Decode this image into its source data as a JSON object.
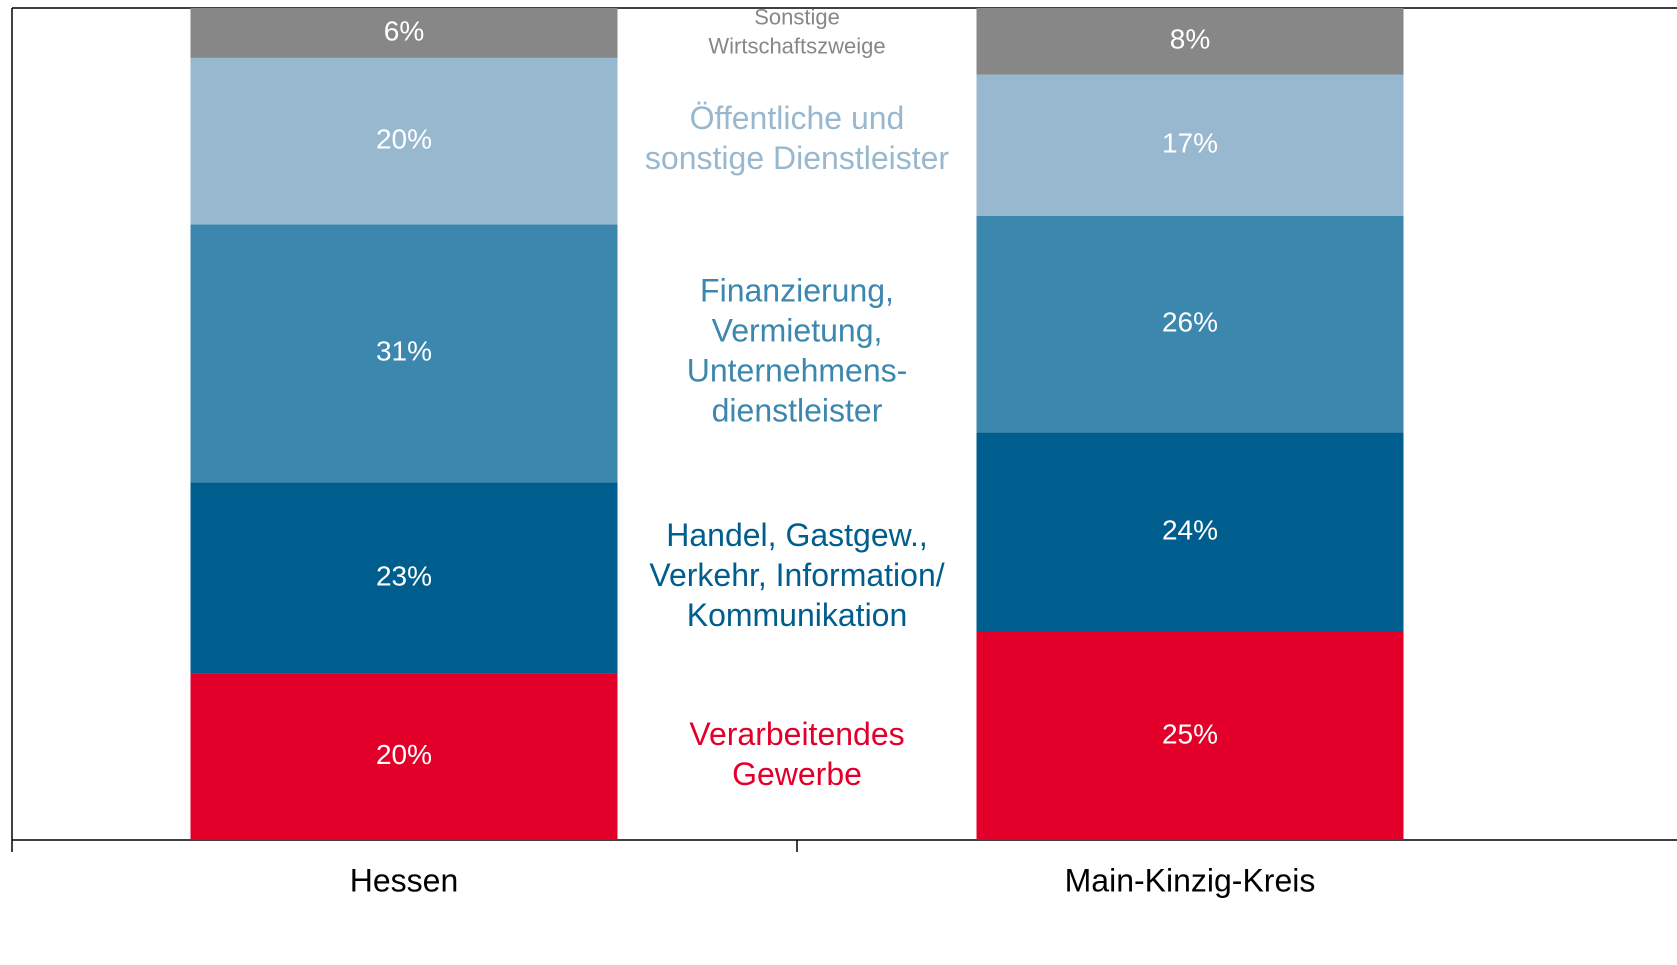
{
  "chart_data": {
    "type": "stacked_bar",
    "categories": [
      "Hessen",
      "Main-Kinzig-Kreis"
    ],
    "ylim": [
      0,
      100
    ],
    "series": [
      {
        "name": "Verarbeitendes\nGewerbe",
        "color": "#e2002a",
        "values": [
          20,
          25
        ],
        "value_labels": [
          "20%",
          "25%"
        ]
      },
      {
        "name": "Handel, Gastgew.,\nVerkehr, Information/\nKommunikation",
        "color": "#005e8e",
        "values": [
          23,
          24
        ],
        "value_labels": [
          "23%",
          "24%"
        ]
      },
      {
        "name": "Finanzierung,\nVermietung,\nUnternehmens-\ndienstleister",
        "color": "#3c87ae",
        "values": [
          31,
          26
        ],
        "value_labels": [
          "31%",
          "26%"
        ]
      },
      {
        "name": "Öffentliche und\nsonstige Dienstleister",
        "color": "#98b8cf",
        "values": [
          20,
          17
        ],
        "value_labels": [
          "20%",
          "17%"
        ]
      },
      {
        "name": "Sonstige\nWirtschaftszweige",
        "color": "#878787",
        "values": [
          6,
          8
        ],
        "value_labels": [
          "6%",
          "8%"
        ]
      }
    ]
  }
}
